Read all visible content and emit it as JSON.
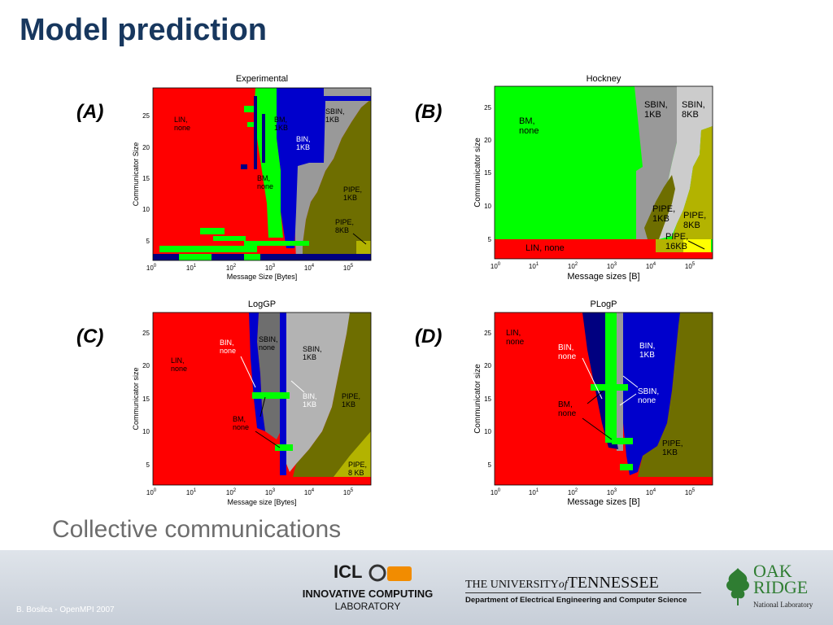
{
  "slide": {
    "title": "Model prediction",
    "subtitle": "Collective communications"
  },
  "panels": [
    {
      "tag": "(A)",
      "heading": "Experimental",
      "xlabel": "Message Size [Bytes]",
      "ylabel": "Communicator Size",
      "regions": [
        "LIN,\nnone",
        "BM,\n1KB",
        "BIN,\n1KB",
        "SBIN,\n1KB",
        "BM,\nnone",
        "PIPE,\n1KB",
        "PIPE,\n8KB"
      ]
    },
    {
      "tag": "(B)",
      "heading": "Hockney",
      "xlabel": "Message sizes [B]",
      "ylabel": "Communicator size",
      "regions": [
        "BM,\nnone",
        "SBIN,\n1KB",
        "SBIN,\n8KB",
        "PIPE,\n1KB",
        "PIPE,\n8KB",
        "PIPE,\n16KB",
        "LIN, none"
      ]
    },
    {
      "tag": "(C)",
      "heading": "LogGP",
      "xlabel": "Message size [Bytes]",
      "ylabel": "Communicator size",
      "regions": [
        "LIN,\nnone",
        "BIN,\nnone",
        "SBIN,\nnone",
        "SBIN,\n1KB",
        "BIN,\n1KB",
        "PIPE,\n1KB",
        "BM,\nnone",
        "PIPE,\n8 KB"
      ]
    },
    {
      "tag": "(D)",
      "heading": "PLogP",
      "xlabel": "Message sizes [B]",
      "ylabel": "Communicator size",
      "regions": [
        "LIN,\nnone",
        "BIN,\nnone",
        "BIN,\n1KB",
        "SBIN,\nnone",
        "BM,\nnone",
        "PIPE,\n1KB"
      ]
    }
  ],
  "axes": {
    "yticks": [
      "25",
      "20",
      "15",
      "10",
      "5"
    ],
    "xticks_base": "10",
    "xticks_exp": [
      "0",
      "1",
      "2",
      "3",
      "4",
      "5"
    ]
  },
  "colors": {
    "LIN": "#ff0000",
    "BM": "#00ff00",
    "BIN": "#0000cc",
    "SBIN": "#999999",
    "SBIN8": "#cccccc",
    "PIPE": "#6e6e00",
    "PIPE8": "#b3b300",
    "PIPE16": "#ffff00",
    "dark": "#000080"
  },
  "footer": {
    "left_text": "B. Bosilca - OpenMPI 2007",
    "icl_logo": "ICL",
    "icl_line1": "INNOVATIVE COMPUTING",
    "icl_line2": "LABORATORY",
    "ut_name_pre": "THE UNIVERSITY",
    "ut_name_of": "of",
    "ut_name_post": "TENNESSEE",
    "ut_dept": "Department of Electrical Engineering and Computer Science",
    "ornl_line1": "OAK",
    "ornl_line2": "RIDGE",
    "ornl_line3": "National Laboratory"
  }
}
